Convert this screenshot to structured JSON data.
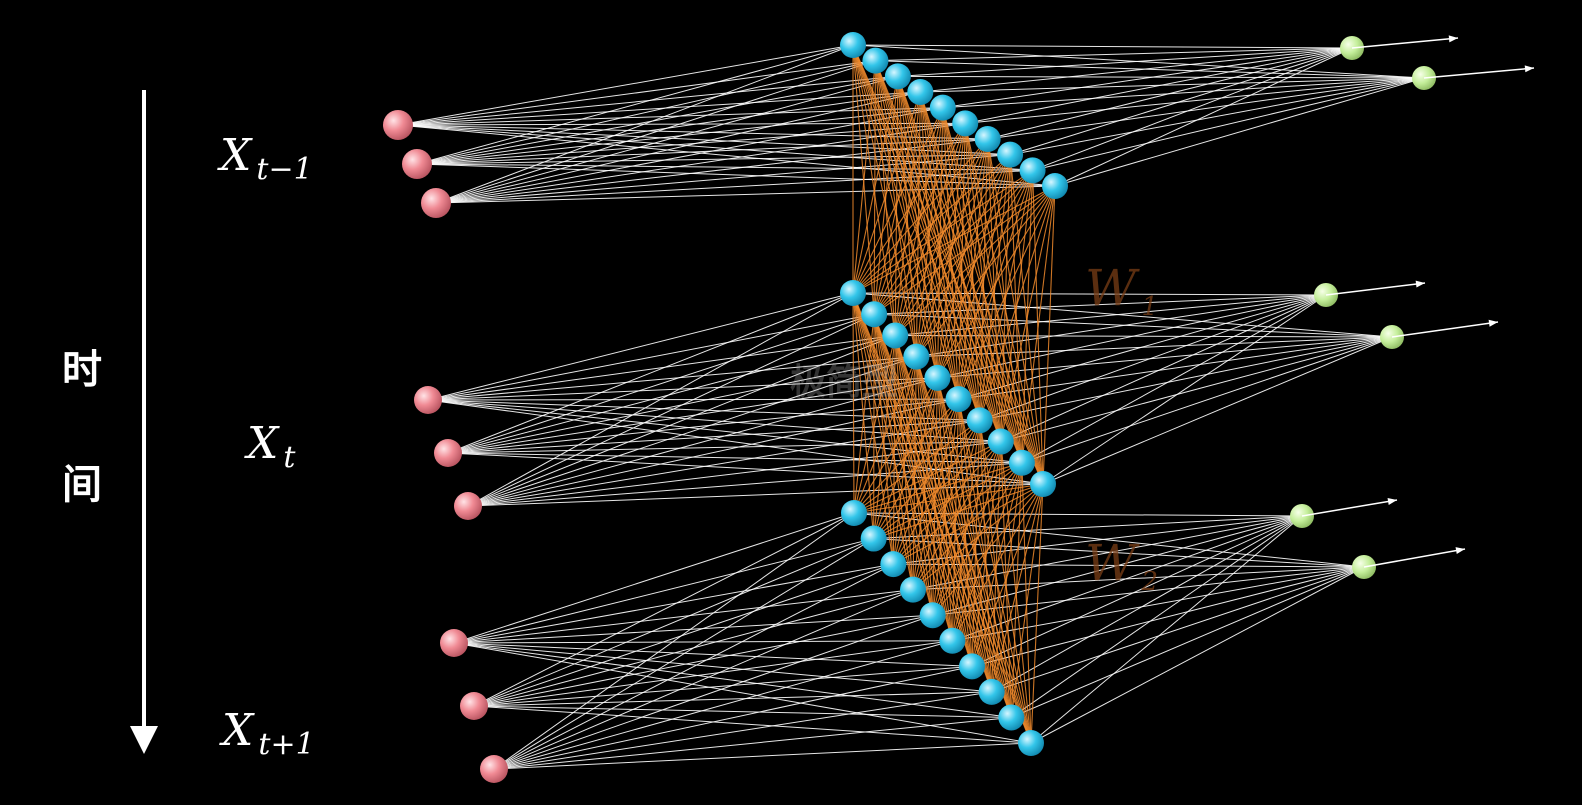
{
  "time_axis": {
    "label_chars": [
      "时",
      "间"
    ],
    "color": "#ffffff"
  },
  "steps": [
    {
      "label_base": "X",
      "label_sub": "t−1",
      "input_nodes": 3,
      "hidden_nodes": 10,
      "output_nodes": 2
    },
    {
      "label_base": "X",
      "label_sub": "t",
      "input_nodes": 3,
      "hidden_nodes": 10,
      "output_nodes": 2
    },
    {
      "label_base": "X",
      "label_sub": "t+1",
      "input_nodes": 3,
      "hidden_nodes": 10,
      "output_nodes": 2
    }
  ],
  "weights": [
    {
      "label_base": "W",
      "label_sub": "1"
    },
    {
      "label_base": "W",
      "label_sub": "2"
    }
  ],
  "watermark": "极简型",
  "colors": {
    "background": "#000000",
    "input_node": "#f08a94",
    "hidden_node": "#33c6ea",
    "output_node": "#c4ee9a",
    "feedforward_edge": "#ffffff",
    "recurrent_edge": "#f0892c",
    "weight_label": "#7a3e16"
  },
  "icons": {
    "time_arrow": "arrow-down-icon",
    "output_arrow": "arrow-right-icon"
  }
}
